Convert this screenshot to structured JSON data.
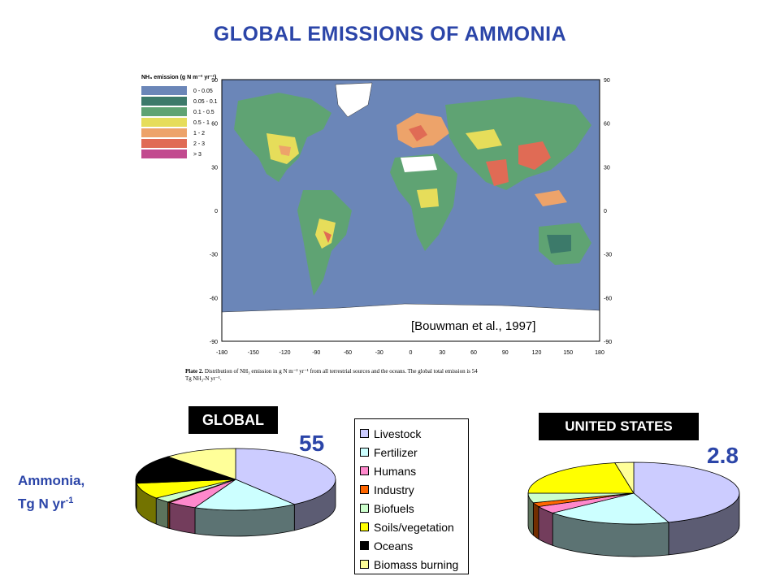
{
  "title": "GLOBAL EMISSIONS OF AMMONIA",
  "map": {
    "legend_title": "NH₃ emission (g N m⁻² yr⁻¹)",
    "legend": [
      {
        "range": "0 - 0.05",
        "color": "#6b86b8"
      },
      {
        "range": "0.05 - 0.1",
        "color": "#3c7a6a"
      },
      {
        "range": "0.1 - 0.5",
        "color": "#5fa373"
      },
      {
        "range": "0.5 - 1",
        "color": "#e6dd5a"
      },
      {
        "range": "1 - 2",
        "color": "#eda36a"
      },
      {
        "range": "2 - 3",
        "color": "#e06b55"
      },
      {
        "range": "> 3",
        "color": "#c24a8f"
      }
    ],
    "lat_ticks": [
      "90",
      "60",
      "30",
      "0",
      "-30",
      "-60",
      "-90"
    ],
    "lon_ticks": [
      "-180",
      "-150",
      "-120",
      "-90",
      "-60",
      "-30",
      "0",
      "30",
      "60",
      "90",
      "120",
      "150",
      "180"
    ],
    "citation": "[Bouwman et al., 1997]",
    "caption_bold": "Plate 2.",
    "caption_rest": " Distribution of NH₃ emission in g N m⁻² yr⁻¹ from all terrestrial sources and the oceans. The global total emission is 54",
    "caption_line2": "Tg NH₃-N yr⁻¹."
  },
  "axis_title_line1": "Ammonia,",
  "axis_title_line2": "Tg N yr",
  "axis_title_sup": "-1",
  "chart_data": [
    {
      "type": "pie",
      "title": "GLOBAL",
      "total": "55",
      "categories": [
        "Livestock",
        "Fertilizer",
        "Humans",
        "Industry",
        "Biofuels",
        "Soils/vegetation",
        "Oceans",
        "Biomass burning"
      ],
      "values": [
        21.6,
        9.0,
        2.6,
        0.2,
        1.5,
        4.5,
        8.2,
        6.4
      ],
      "colors": [
        "#ccccff",
        "#ccffff",
        "#ff88cc",
        "#ff6600",
        "#ccffcc",
        "#ffff00",
        "#000000",
        "#ffff99"
      ]
    },
    {
      "type": "pie",
      "title": "UNITED STATES",
      "total": "2.8",
      "categories": [
        "Livestock",
        "Fertilizer",
        "Humans",
        "Industry",
        "Biofuels",
        "Soils/vegetation",
        "Oceans",
        "Biomass burning"
      ],
      "values": [
        1.25,
        0.54,
        0.11,
        0.06,
        0.14,
        0.62,
        0.0,
        0.08
      ],
      "colors": [
        "#ccccff",
        "#ccffff",
        "#ff88cc",
        "#ff6600",
        "#ccffcc",
        "#ffff00",
        "#000000",
        "#ffff99"
      ]
    }
  ]
}
